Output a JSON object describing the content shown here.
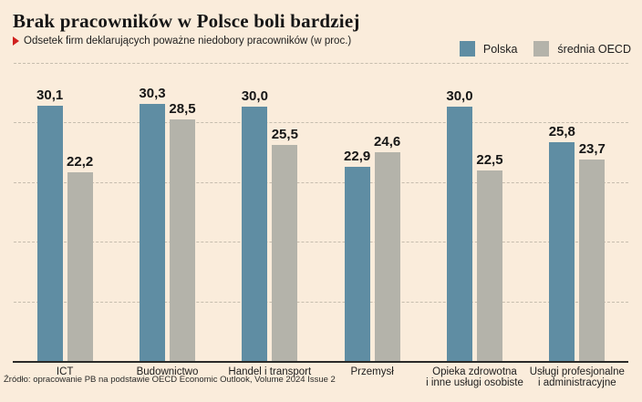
{
  "header": {
    "title": "Brak pracowników w Polsce boli bardziej",
    "subtitle": "Odsetek firm deklarujących poważne niedobory pracowników (w proc.)"
  },
  "legend": [
    {
      "label": "Polska",
      "color": "#5f8da3"
    },
    {
      "label": "średnia OECD",
      "color": "#b4b3aa"
    }
  ],
  "chart_data": {
    "type": "bar",
    "title": "Brak pracowników w Polsce boli bardziej",
    "subtitle": "Odsetek firm deklarujących poważne niedobory pracowników (w proc.)",
    "categories": [
      "ICT",
      "Budownictwo",
      "Handel i transport",
      "Przemysł",
      "Opieka zdrowotna\ni inne usługi osobiste",
      "Usługi profesjonalne\ni administracyjne"
    ],
    "series": [
      {
        "name": "Polska",
        "color": "#5f8da3",
        "values": [
          30.1,
          30.3,
          30.0,
          22.9,
          30.0,
          25.8
        ]
      },
      {
        "name": "średnia OECD",
        "color": "#b4b3aa",
        "values": [
          22.2,
          28.5,
          25.5,
          24.6,
          22.5,
          23.7
        ]
      }
    ],
    "value_label_decimal_separator": ",",
    "ylim": [
      0,
      35.2
    ],
    "gridline_values": [
      7,
      14,
      21,
      28,
      35
    ],
    "grid": "horizontal-dashed",
    "legend_position": "top-right",
    "y_axis_ticks_visible": false
  },
  "footer": {
    "source": "Źródło: opracowanie PB na podstawie OECD Economic Outlook, Volume 2024 Issue 2"
  },
  "colors": {
    "background": "#faecdb",
    "bar_polska": "#5f8da3",
    "bar_oecd": "#b4b3aa",
    "axis": "#2a2a28",
    "gridline": "#c6bdae",
    "text": "#161616",
    "bullet": "#d0201e"
  }
}
